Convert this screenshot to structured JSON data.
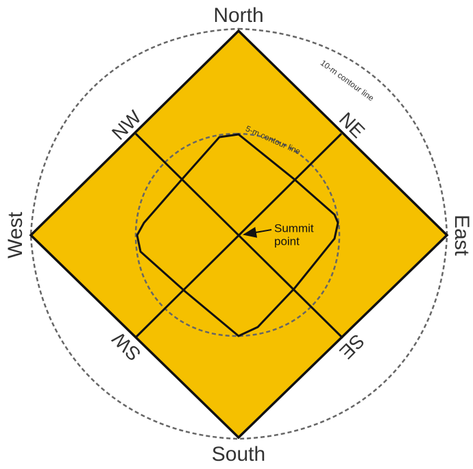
{
  "directions": {
    "north": "North",
    "south": "South",
    "east": "East",
    "west": "West",
    "nw": "NW",
    "ne": "NE",
    "sw": "SW",
    "se": "SE"
  },
  "contours": {
    "outer": "10-m contour line",
    "inner": "5-m contour line"
  },
  "summit": [
    "Summit",
    "point"
  ]
}
